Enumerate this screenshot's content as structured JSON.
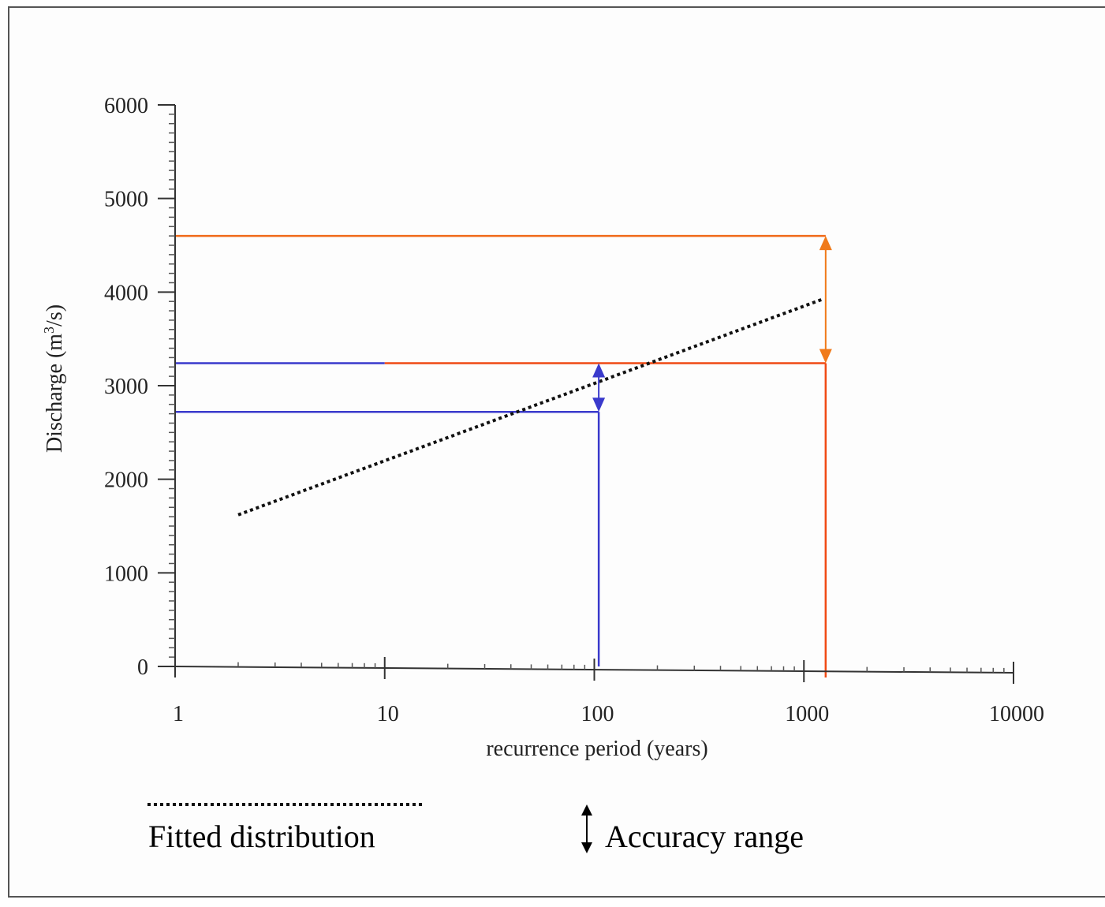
{
  "chart_data": {
    "type": "line",
    "title": "",
    "xlabel": "recurrence period (years)",
    "ylabel": "Discharge (m³/s)",
    "ylabel_parts": {
      "pre": "Discharge (m",
      "sup": "3",
      "post": "/s)"
    },
    "x_scale": "log",
    "xlim": [
      1,
      10000
    ],
    "ylim": [
      0,
      6000
    ],
    "x_ticks": [
      1,
      10,
      100,
      1000,
      10000
    ],
    "x_tick_labels": [
      "1",
      "10",
      "100",
      "1000",
      "10000"
    ],
    "y_ticks": [
      0,
      1000,
      2000,
      3000,
      4000,
      5000,
      6000
    ],
    "y_tick_labels": [
      "0",
      "1000",
      "2000",
      "3000",
      "4000",
      "5000",
      "6000"
    ],
    "grid": false,
    "series": [
      {
        "name": "Fitted distribution",
        "style": "dotted",
        "color": "#111111",
        "x": [
          2,
          1250
        ],
        "y": [
          1620,
          3930
        ]
      }
    ],
    "reference_lines": [
      {
        "id": "blue-upper",
        "color": "#3a3acc",
        "x": [
          1,
          10
        ],
        "y": [
          3240,
          3240
        ]
      },
      {
        "id": "blue-lower",
        "color": "#3a3acc",
        "x": [
          1,
          105
        ],
        "y": [
          2720,
          2720
        ]
      },
      {
        "id": "blue-vertical",
        "color": "#3a3acc",
        "x": [
          105,
          105
        ],
        "y": [
          0,
          2720
        ]
      },
      {
        "id": "orange-mid",
        "color": "#f04a14",
        "x": [
          10,
          1270
        ],
        "y": [
          3240,
          3240
        ]
      },
      {
        "id": "orange-upper",
        "color": "#f06a1a",
        "x": [
          1,
          1270
        ],
        "y": [
          4600,
          4600
        ]
      },
      {
        "id": "orange-vertical",
        "color": "#f04a14",
        "x": [
          1270,
          1270
        ],
        "y": [
          0,
          3240
        ]
      }
    ],
    "accuracy_ranges": [
      {
        "id": "blue-range",
        "color": "#3a3acc",
        "x": 105,
        "y_low": 2720,
        "y_high": 3240
      },
      {
        "id": "orange-range",
        "color": "#f07a1a",
        "x": 1270,
        "y_low": 3240,
        "y_high": 4600
      }
    ],
    "legend": [
      {
        "label": "Fitted distribution",
        "symbol": "dotted-line"
      },
      {
        "label": "Accuracy range",
        "symbol": "double-arrow"
      }
    ],
    "legend_placement": "bottom"
  }
}
